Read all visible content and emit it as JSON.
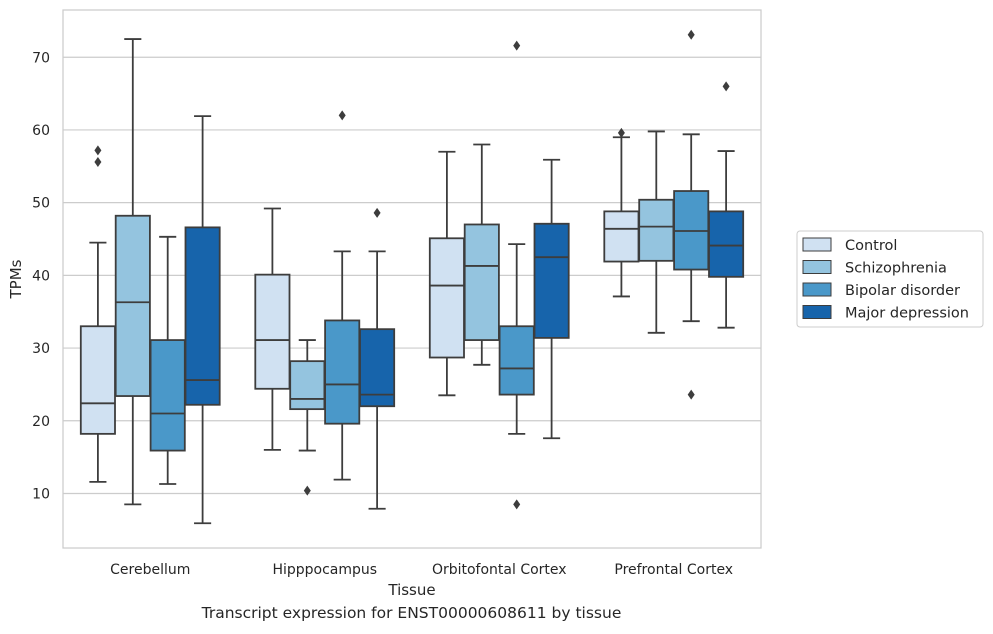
{
  "caption": "Transcript expression for ENST00000608611 by tissue",
  "chart_data": {
    "type": "box",
    "xlabel": "Tissue",
    "ylabel": "TPMs",
    "ylim": [
      2.5,
      76.5
    ],
    "yticks": [
      10,
      20,
      30,
      40,
      50,
      60,
      70
    ],
    "grid": true,
    "legend_position": "right",
    "categories": [
      "Cerebellum",
      "Hipppocampus",
      "Orbitofontal Cortex",
      "Prefrontal Cortex"
    ],
    "series": [
      {
        "name": "Control",
        "color": "#d0e1f2",
        "boxes": [
          {
            "whislo": 11.6,
            "q1": 18.2,
            "med": 22.4,
            "q3": 33.0,
            "whishi": 44.5,
            "fliers": [
              55.6,
              57.2
            ]
          },
          {
            "whislo": 16.0,
            "q1": 24.4,
            "med": 31.1,
            "q3": 40.1,
            "whishi": 49.2,
            "fliers": []
          },
          {
            "whislo": 23.5,
            "q1": 28.7,
            "med": 38.6,
            "q3": 45.1,
            "whishi": 57.0,
            "fliers": []
          },
          {
            "whislo": 37.1,
            "q1": 41.9,
            "med": 46.4,
            "q3": 48.8,
            "whishi": 59.0,
            "fliers": [
              59.6
            ]
          }
        ]
      },
      {
        "name": "Schizophrenia",
        "color": "#94c4df",
        "boxes": [
          {
            "whislo": 8.5,
            "q1": 23.4,
            "med": 36.3,
            "q3": 48.2,
            "whishi": 72.5,
            "fliers": []
          },
          {
            "whislo": 15.9,
            "q1": 21.6,
            "med": 23.0,
            "q3": 28.2,
            "whishi": 31.1,
            "fliers": [
              10.4
            ]
          },
          {
            "whislo": 27.7,
            "q1": 31.1,
            "med": 41.3,
            "q3": 47.0,
            "whishi": 58.0,
            "fliers": []
          },
          {
            "whislo": 32.1,
            "q1": 42.0,
            "med": 46.7,
            "q3": 50.4,
            "whishi": 59.8,
            "fliers": []
          }
        ]
      },
      {
        "name": "Bipolar disorder",
        "color": "#4a98c9",
        "boxes": [
          {
            "whislo": 11.3,
            "q1": 15.9,
            "med": 21.0,
            "q3": 31.1,
            "whishi": 45.3,
            "fliers": []
          },
          {
            "whislo": 11.9,
            "q1": 19.6,
            "med": 25.0,
            "q3": 33.8,
            "whishi": 43.3,
            "fliers": [
              62.0
            ]
          },
          {
            "whislo": 18.2,
            "q1": 23.6,
            "med": 27.2,
            "q3": 33.0,
            "whishi": 44.3,
            "fliers": [
              8.5,
              71.6
            ]
          },
          {
            "whislo": 33.7,
            "q1": 40.8,
            "med": 46.1,
            "q3": 51.6,
            "whishi": 59.4,
            "fliers": [
              23.6,
              73.1
            ]
          }
        ]
      },
      {
        "name": "Major depression",
        "color": "#1764ab",
        "boxes": [
          {
            "whislo": 5.9,
            "q1": 22.2,
            "med": 25.6,
            "q3": 46.6,
            "whishi": 61.9,
            "fliers": []
          },
          {
            "whislo": 7.9,
            "q1": 22.0,
            "med": 23.6,
            "q3": 32.6,
            "whishi": 43.3,
            "fliers": [
              48.6
            ]
          },
          {
            "whislo": 17.6,
            "q1": 31.4,
            "med": 42.5,
            "q3": 47.1,
            "whishi": 55.9,
            "fliers": []
          },
          {
            "whislo": 32.8,
            "q1": 39.8,
            "med": 44.1,
            "q3": 48.8,
            "whishi": 57.1,
            "fliers": [
              66.0
            ]
          }
        ]
      }
    ]
  }
}
